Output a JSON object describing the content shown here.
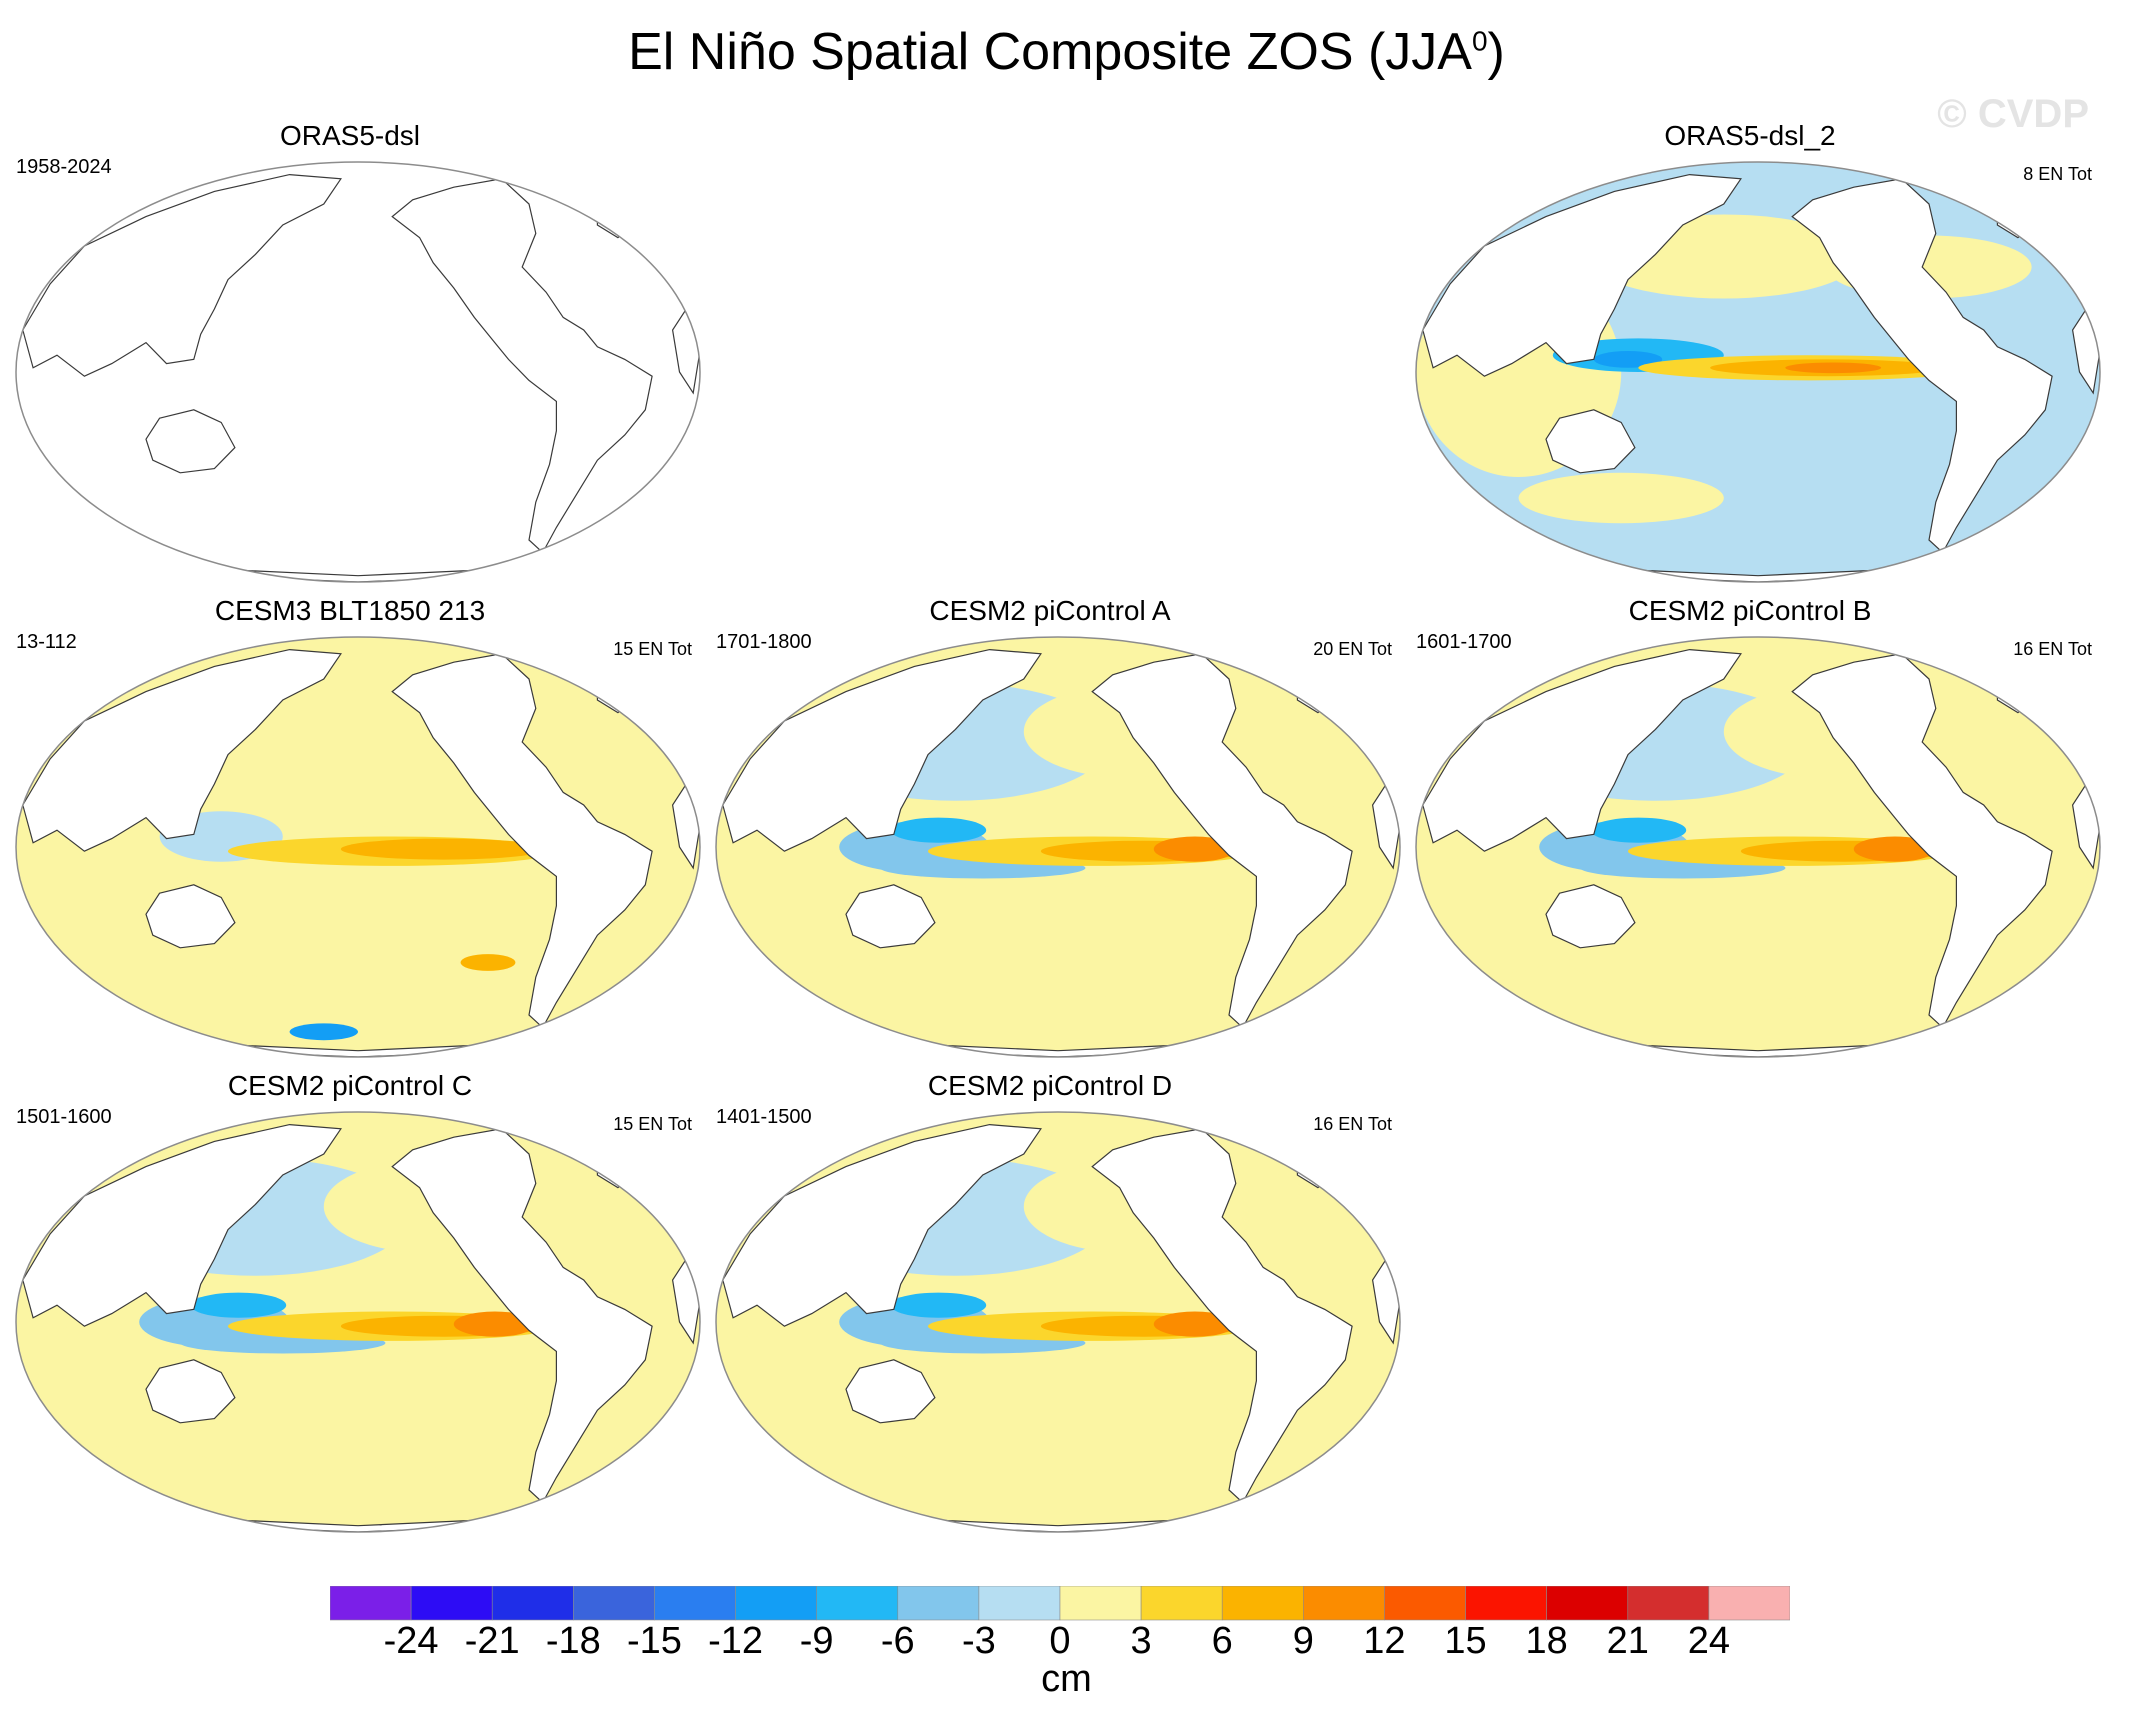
{
  "figure": {
    "title_main": "El Niño Spatial Composite ZOS (JJA",
    "title_sup": "0",
    "title_end": ")",
    "watermark": "© CVDP"
  },
  "panels": [
    {
      "name": "ORAS5-dsl",
      "top_left": "1958-2024",
      "top_right": "",
      "has_data": false,
      "pattern": "obs"
    },
    {
      "name": "ORAS5-dsl_2",
      "top_left": "",
      "top_right": "8 EN Tot",
      "has_data": true,
      "pattern": "obs"
    },
    {
      "name": "CESM3 BLT1850 213",
      "top_left": "13-112",
      "top_right": "15 EN Tot",
      "has_data": true,
      "pattern": "cesm3"
    },
    {
      "name": "CESM2 piControl A",
      "top_left": "1701-1800",
      "top_right": "20 EN Tot",
      "has_data": true,
      "pattern": "cesm2"
    },
    {
      "name": "CESM2 piControl B",
      "top_left": "1601-1700",
      "top_right": "16 EN Tot",
      "has_data": true,
      "pattern": "cesm2"
    },
    {
      "name": "CESM2 piControl C",
      "top_left": "1501-1600",
      "top_right": "15 EN Tot",
      "has_data": true,
      "pattern": "cesm2"
    },
    {
      "name": "CESM2 piControl D",
      "top_left": "1401-1500",
      "top_right": "16 EN Tot",
      "has_data": true,
      "pattern": "cesm2"
    }
  ],
  "colorbar": {
    "units": "cm",
    "labels": [
      "-24",
      "-21",
      "-18",
      "-15",
      "-12",
      "-9",
      "-6",
      "-3",
      "0",
      "3",
      "6",
      "9",
      "12",
      "15",
      "18",
      "21",
      "24"
    ],
    "colors": [
      "#7b1fe8",
      "#2d0cf5",
      "#1f2ee8",
      "#3a64dc",
      "#2a7ef0",
      "#139ef5",
      "#22b8f5",
      "#82c6ec",
      "#b6def2",
      "#fbf5a3",
      "#fbd62c",
      "#fbb300",
      "#fb8c00",
      "#fb5a00",
      "#fb1400",
      "#dc0000",
      "#d42e2e",
      "#f9b0b0"
    ]
  },
  "palette": {
    "land": "#ffffff",
    "coast": "#3a3a3a",
    "frame": "#8c8c8c"
  }
}
